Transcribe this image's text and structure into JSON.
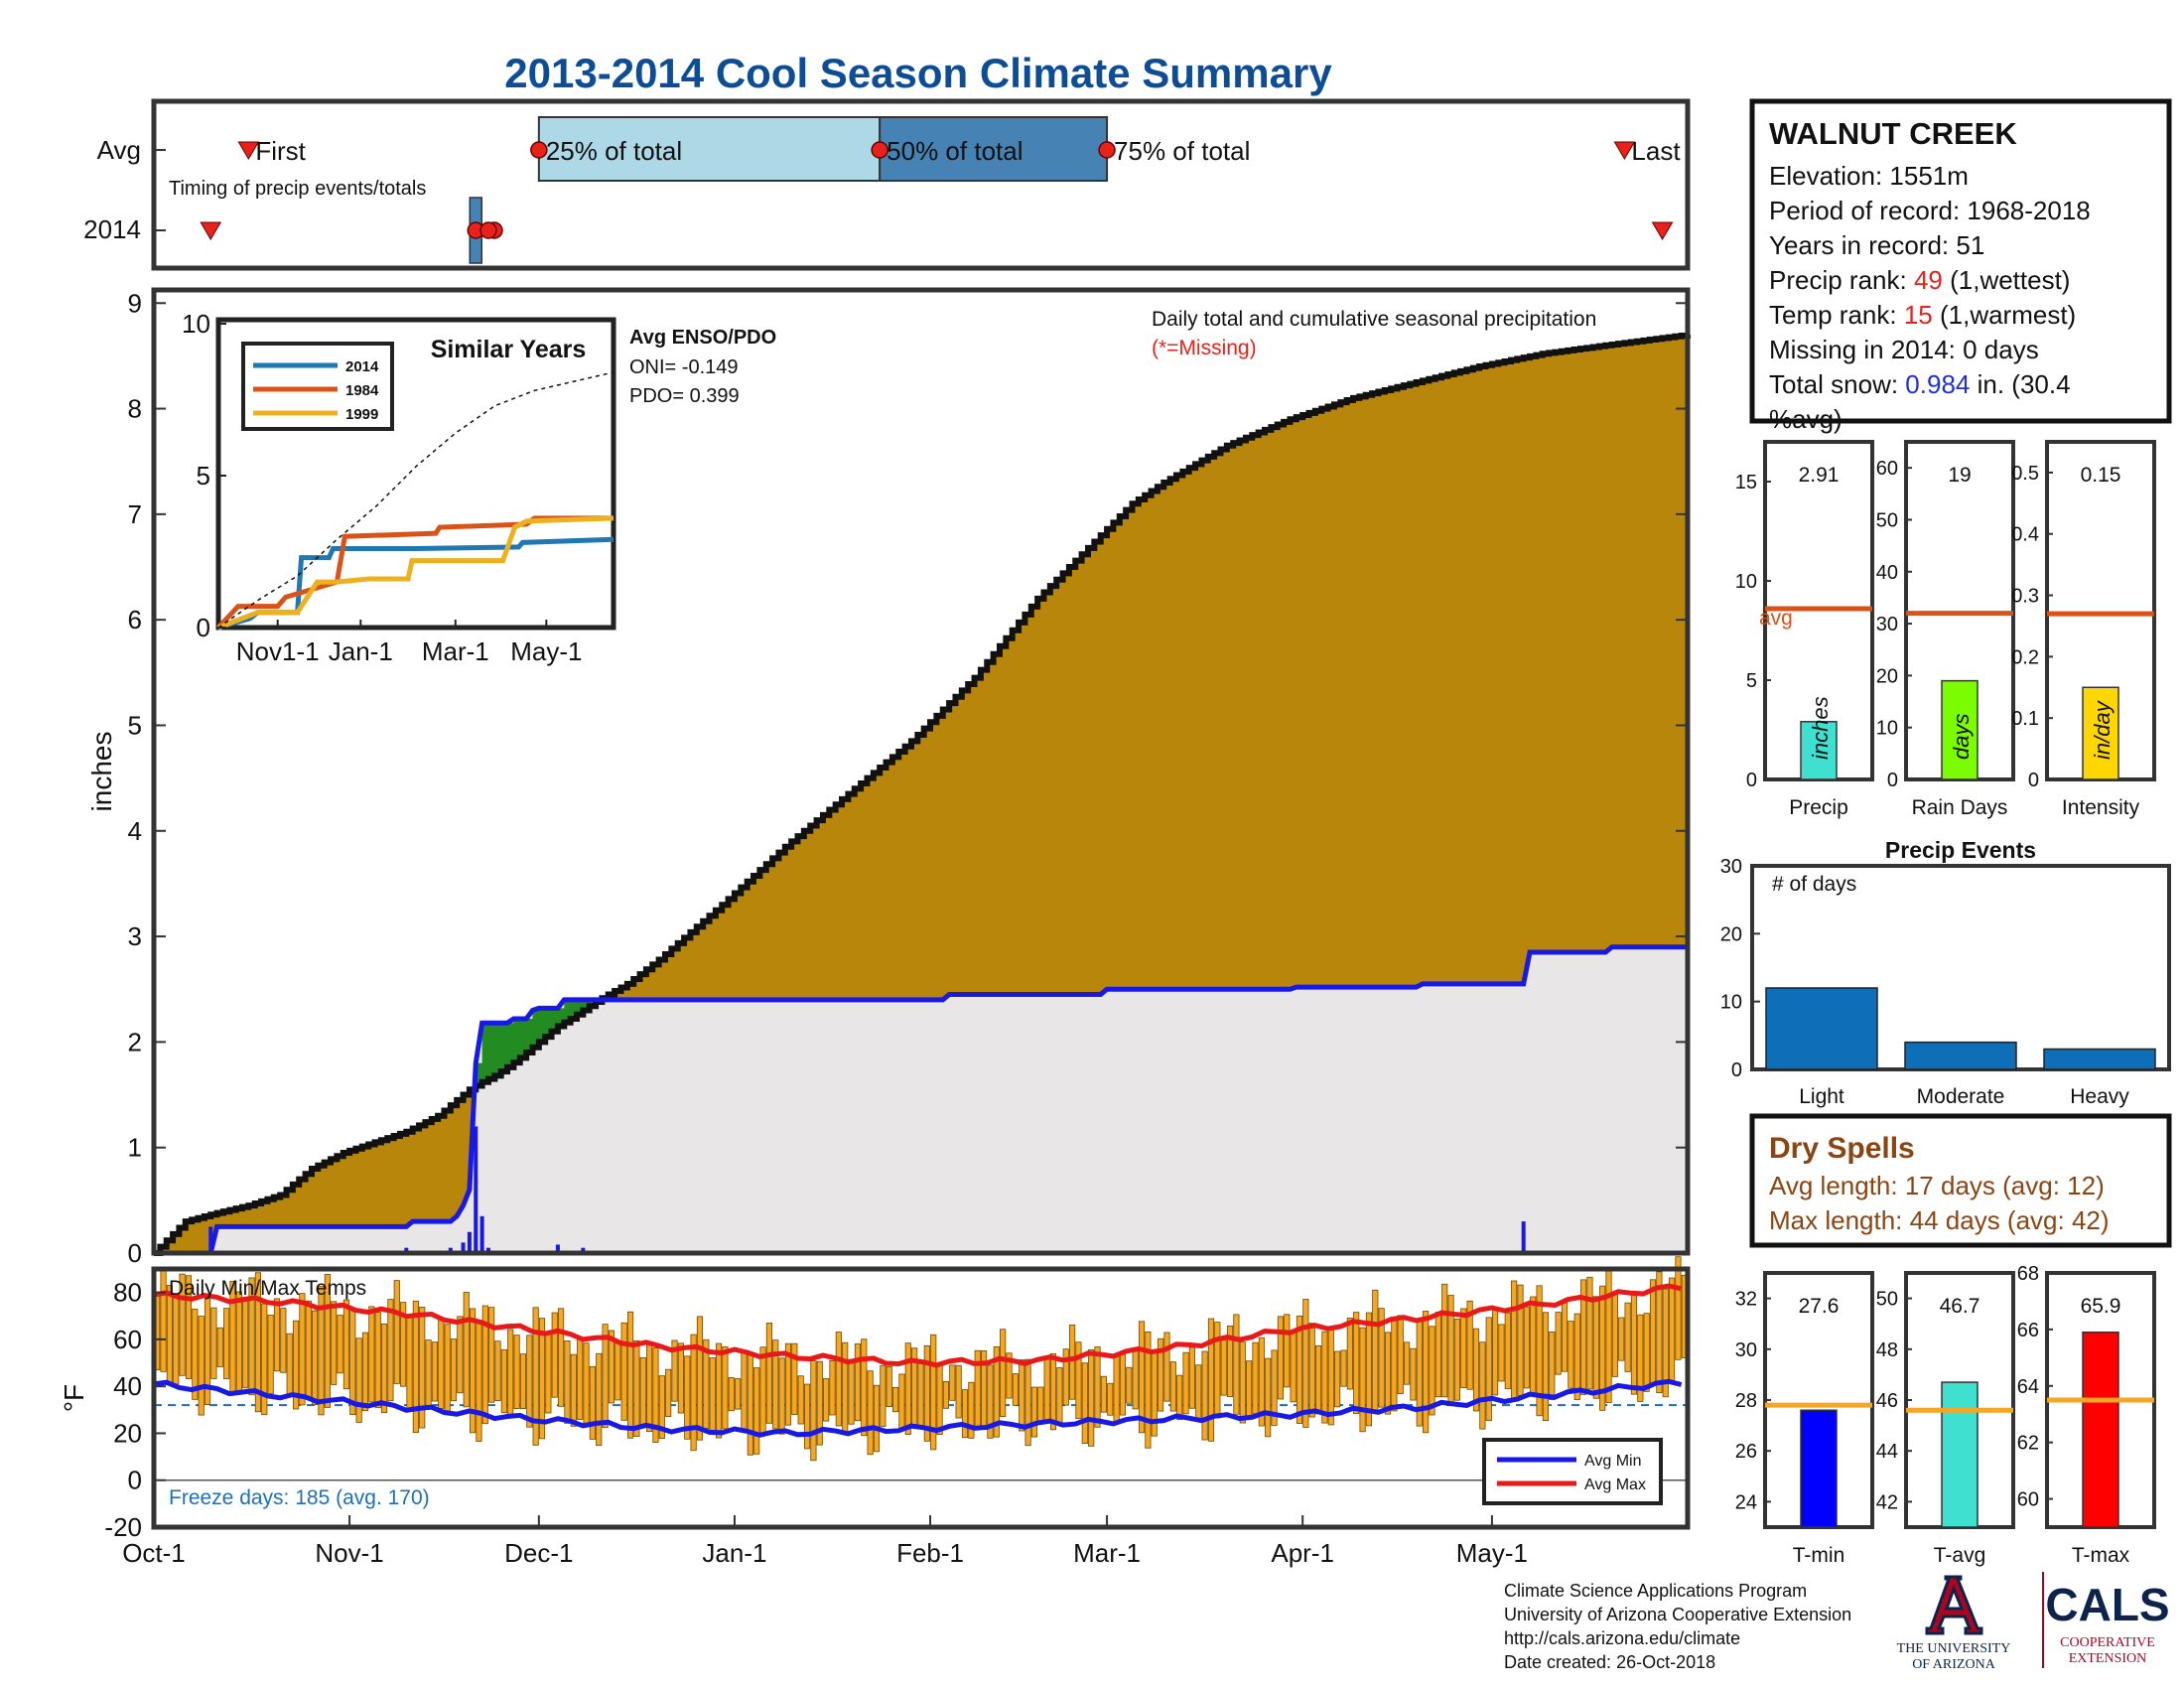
{
  "page": {
    "title": "2013-2014 Cool Season Climate Summary"
  },
  "timing": {
    "row_labels": [
      "Avg",
      "2014"
    ],
    "avg_markers": {
      "first": "First",
      "p25": "25% of total",
      "p50": "50% of total",
      "p75": "75% of total",
      "last": "Last"
    },
    "caption": "Timing of precip events/totals",
    "avg_dates": {
      "first": "Oct-16",
      "p25": "Dec-1",
      "p50": "Jan-24",
      "p75": "Mar-1",
      "last": "May-22"
    },
    "y2014_dates": {
      "first": "Oct-10",
      "p25": "Nov-21",
      "p50": "Nov-23",
      "p75": "Nov-23",
      "last": "May-28"
    }
  },
  "station": {
    "name": "WALNUT CREEK",
    "elevation_label": "Elevation: 1551m",
    "period_label": "Period of record: 1968-2018",
    "years_label": "Years in record: 51",
    "precip_rank_prefix": "Precip rank: ",
    "precip_rank_value": "49",
    "precip_rank_suffix": " (1,wettest)",
    "temp_rank_prefix": "Temp rank: ",
    "temp_rank_value": "15",
    "temp_rank_suffix": " (1,warmest)",
    "missing_label": "Missing in 2014: 0 days",
    "snow_prefix": "Total snow: ",
    "snow_value": "0.984",
    "snow_suffix": " in. (30.4",
    "snow_suffix2": "%avg)",
    "rank_color": "#e8221a",
    "snow_color": "#1f2fd8"
  },
  "main_chart": {
    "note": "Daily total and cumulative seasonal precipitation",
    "missing_note": "(*=Missing)",
    "ylabel": "inches",
    "yticks": [
      "0",
      "1",
      "2",
      "3",
      "4",
      "5",
      "6",
      "7",
      "8",
      "9"
    ],
    "colors": {
      "avg_fill": "#b8860b",
      "obs_fill": "#e8e6e6",
      "obs_line": "#1919e6",
      "above_fill": "#228b22"
    }
  },
  "inset": {
    "title": "Similar Years",
    "legend": [
      "2014",
      "1984",
      "1999"
    ],
    "colors": [
      "#1f77b4",
      "#d95319",
      "#edb120"
    ],
    "yticks": [
      "0",
      "5",
      "10"
    ],
    "xticks": [
      "Nov1-1",
      "Jan-1",
      "Mar-1",
      "May-1"
    ],
    "enso_title": "Avg ENSO/PDO",
    "oni_label": "ONI= -0.149",
    "pdo_label": "PDO= 0.399"
  },
  "temp_chart": {
    "title": "Daily Min/Max Temps",
    "ylabel": "°F",
    "yticks": [
      "-20",
      "0",
      "20",
      "40",
      "60",
      "80"
    ],
    "freeze_label": "Freeze days: 185 (avg. 170)",
    "legend_min": "Avg Min",
    "legend_max": "Avg Max",
    "bar_color": "#f5a623",
    "min_color": "#1919e6",
    "max_color": "#e81919"
  },
  "month_ticks": [
    "Oct-1",
    "Nov-1",
    "Dec-1",
    "Jan-1",
    "Feb-1",
    "Mar-1",
    "Apr-1",
    "May-1"
  ],
  "mini_precip": {
    "panels": [
      {
        "name": "Precip",
        "value_label": "2.91",
        "unit": "inches",
        "yticks": [
          "0",
          "5",
          "10",
          "15"
        ],
        "avg_label": "avg",
        "color": "#40e0d0"
      },
      {
        "name": "Rain Days",
        "value_label": "19",
        "unit": "days",
        "yticks": [
          "0",
          "10",
          "20",
          "30",
          "40",
          "50",
          "60"
        ],
        "color": "#7cfc00"
      },
      {
        "name": "Intensity",
        "value_label": "0.15",
        "unit": "in/day",
        "yticks": [
          "0",
          "0.1",
          "0.2",
          "0.3",
          "0.4",
          "0.5"
        ],
        "color": "#ffd700"
      }
    ],
    "avg_line_color": "#d95319"
  },
  "events": {
    "title": "Precip Events",
    "ylabel_note": "# of days",
    "categories": [
      "Light",
      "Moderate",
      "Heavy"
    ],
    "yticks": [
      "0",
      "10",
      "20",
      "30"
    ],
    "color": "#0f6eb8"
  },
  "dry_spells": {
    "title": "Dry Spells",
    "avg_label": "Avg length: 17 days (avg: 12)",
    "max_label": "Max length: 44 days (avg: 42)",
    "color": "#8b4513"
  },
  "mini_temp": {
    "panels": [
      {
        "name": "T-min",
        "value_label": "27.6",
        "yticks": [
          "24",
          "26",
          "28",
          "30",
          "32"
        ],
        "color": "#0000ff"
      },
      {
        "name": "T-avg",
        "value_label": "46.7",
        "yticks": [
          "42",
          "44",
          "46",
          "48",
          "50"
        ],
        "color": "#40e0d0"
      },
      {
        "name": "T-max",
        "value_label": "65.9",
        "yticks": [
          "60",
          "62",
          "64",
          "66",
          "68"
        ],
        "color": "#ff0000"
      }
    ],
    "avg_line_color": "#f5a623"
  },
  "footer": {
    "lines": [
      "Climate Science Applications Program",
      "University of Arizona Cooperative Extension",
      "http://cals.arizona.edu/climate",
      " Date created: 26-Oct-2018"
    ],
    "ua_line1": "THE UNIVERSITY",
    "ua_line2": "OF ARIZONA",
    "cals": "CALS",
    "cals_sub1": "COOPERATIVE",
    "cals_sub2": "EXTENSION"
  },
  "chart_data": [
    {
      "type": "area",
      "title": "Daily total and cumulative seasonal precipitation",
      "ylabel": "inches",
      "ylim": [
        0,
        9
      ],
      "x_label_ticks": [
        "Oct-1",
        "Nov-1",
        "Dec-1",
        "Jan-1",
        "Feb-1",
        "Mar-1",
        "Apr-1",
        "May-1"
      ],
      "x_days_range": [
        0,
        243
      ],
      "series": [
        {
          "name": "avg cumulative",
          "x": [
            0,
            5,
            10,
            15,
            20,
            25,
            30,
            35,
            40,
            45,
            50,
            52,
            54,
            56,
            58,
            60,
            62,
            64,
            66,
            68,
            70,
            72,
            75,
            80,
            90,
            100,
            110,
            120,
            130,
            140,
            150,
            155,
            160,
            170,
            180,
            190,
            200,
            210,
            220,
            230,
            243
          ],
          "y": [
            0,
            0.3,
            0.38,
            0.45,
            0.55,
            0.8,
            0.95,
            1.05,
            1.15,
            1.3,
            1.55,
            1.62,
            1.68,
            1.76,
            1.85,
            1.95,
            2.05,
            2.15,
            2.22,
            2.3,
            2.38,
            2.45,
            2.55,
            2.78,
            3.3,
            3.85,
            4.35,
            4.85,
            5.45,
            6.2,
            6.8,
            7.1,
            7.3,
            7.65,
            7.9,
            8.1,
            8.25,
            8.4,
            8.52,
            8.6,
            8.7
          ]
        },
        {
          "name": "2014 cumulative",
          "x": [
            0,
            9,
            10,
            40,
            41,
            47,
            48,
            49,
            50,
            51,
            52,
            53,
            56,
            57,
            59,
            60,
            61,
            64,
            65,
            125,
            126,
            150,
            151,
            180,
            181,
            200,
            201,
            217,
            218,
            230,
            231,
            243
          ],
          "y": [
            0,
            0,
            0.25,
            0.25,
            0.3,
            0.3,
            0.35,
            0.45,
            0.6,
            1.8,
            2.18,
            2.18,
            2.18,
            2.22,
            2.22,
            2.3,
            2.32,
            2.32,
            2.4,
            2.4,
            2.45,
            2.45,
            2.5,
            2.5,
            2.52,
            2.52,
            2.55,
            2.55,
            2.85,
            2.85,
            2.9,
            2.9
          ]
        },
        {
          "name": "2014 daily",
          "x": [
            9,
            40,
            47,
            49,
            50,
            51,
            52,
            53,
            64,
            68,
            125,
            130,
            217,
            238
          ],
          "y": [
            0.25,
            0.05,
            0.05,
            0.1,
            0.2,
            1.2,
            0.35,
            0.05,
            0.08,
            0.05,
            0.02,
            0.02,
            0.3,
            0.02
          ]
        }
      ]
    },
    {
      "type": "line",
      "title": "Similar Years",
      "ylim": [
        0,
        10
      ],
      "x_label_ticks": [
        "Nov1-1",
        "Jan-1",
        "Mar-1",
        "May-1"
      ],
      "series": [
        {
          "name": "2014",
          "x": [
            0,
            0.08,
            0.1,
            0.2,
            0.21,
            0.28,
            0.29,
            0.48,
            0.5,
            0.76,
            0.77,
            1.0
          ],
          "y": [
            0,
            0.3,
            0.5,
            0.5,
            2.3,
            2.3,
            2.6,
            2.6,
            2.6,
            2.65,
            2.8,
            2.9
          ]
        },
        {
          "name": "1984",
          "x": [
            0,
            0.05,
            0.15,
            0.17,
            0.3,
            0.32,
            0.55,
            0.56,
            0.78,
            0.8,
            1.0
          ],
          "y": [
            0,
            0.7,
            0.7,
            1.0,
            1.5,
            3.0,
            3.1,
            3.3,
            3.4,
            3.6,
            3.6
          ]
        },
        {
          "name": "1999",
          "x": [
            0,
            0.1,
            0.2,
            0.25,
            0.3,
            0.38,
            0.48,
            0.49,
            0.72,
            0.75,
            0.78,
            1.0
          ],
          "y": [
            0,
            0.5,
            0.5,
            1.5,
            1.5,
            1.6,
            1.6,
            2.2,
            2.2,
            3.3,
            3.5,
            3.6
          ]
        },
        {
          "name": "avg",
          "x": [
            0,
            0.1,
            0.2,
            0.3,
            0.4,
            0.5,
            0.6,
            0.7,
            0.8,
            0.9,
            1.0
          ],
          "y": [
            0,
            0.9,
            1.7,
            2.9,
            4.0,
            5.3,
            6.4,
            7.3,
            7.8,
            8.1,
            8.4
          ]
        }
      ]
    },
    {
      "type": "line",
      "title": "Daily Min/Max Temps",
      "ylabel": "°F",
      "ylim": [
        -20,
        90
      ],
      "series": [
        {
          "name": "Avg Max",
          "x": [
            0,
            20,
            40,
            60,
            80,
            100,
            120,
            140,
            160,
            180,
            200,
            220,
            243
          ],
          "y": [
            79,
            76,
            71,
            64,
            57,
            53,
            50,
            51,
            56,
            64,
            69,
            75,
            83
          ]
        },
        {
          "name": "Avg Min",
          "x": [
            0,
            20,
            40,
            60,
            80,
            100,
            120,
            140,
            160,
            180,
            200,
            220,
            243
          ],
          "y": [
            41,
            36,
            31,
            26,
            22,
            20,
            22,
            24,
            26,
            28,
            31,
            36,
            42
          ]
        }
      ]
    },
    {
      "type": "bar",
      "categories": [
        "Precip",
        "Rain Days",
        "Intensity"
      ],
      "values": [
        2.91,
        19,
        0.15
      ],
      "averages": [
        8.6,
        32,
        0.27
      ],
      "ylims": [
        [
          0,
          17
        ],
        [
          0,
          65
        ],
        [
          0,
          0.55
        ]
      ]
    },
    {
      "type": "bar",
      "title": "Precip Events",
      "categories": [
        "Light",
        "Moderate",
        "Heavy"
      ],
      "values": [
        12,
        4,
        3
      ],
      "ylim": [
        0,
        30
      ]
    },
    {
      "type": "bar",
      "categories": [
        "T-min",
        "T-avg",
        "T-max"
      ],
      "values": [
        27.6,
        46.7,
        65.9
      ],
      "averages": [
        27.8,
        45.6,
        63.5
      ],
      "ylims": [
        [
          23,
          33
        ],
        [
          41,
          51
        ],
        [
          59,
          68
        ]
      ]
    }
  ]
}
